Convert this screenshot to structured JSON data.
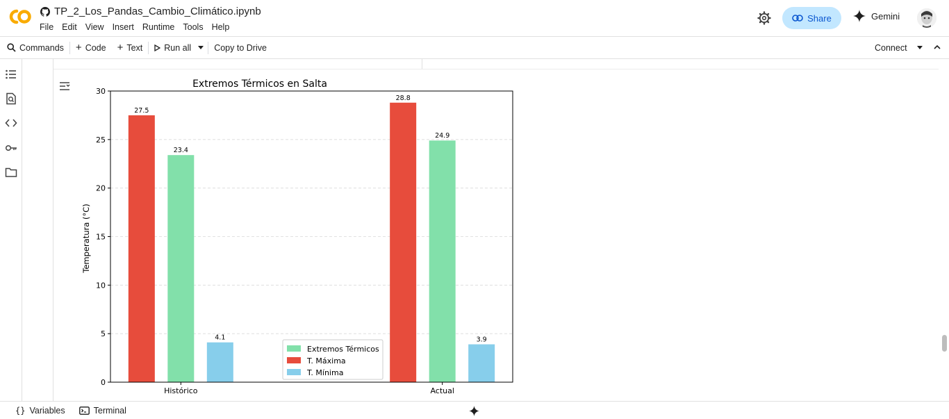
{
  "app": {
    "notebook_title": "TP_2_Los_Pandas_Cambio_Climático.ipynb",
    "menu": [
      "File",
      "Edit",
      "View",
      "Insert",
      "Runtime",
      "Tools",
      "Help"
    ],
    "share_label": "Share",
    "gemini_label": "Gemini"
  },
  "toolbar": {
    "commands": "Commands",
    "code": "Code",
    "text": "Text",
    "run_all": "Run all",
    "copy_to_drive": "Copy to Drive",
    "connect": "Connect"
  },
  "statusbar": {
    "variables": "Variables",
    "terminal": "Terminal"
  },
  "colors": {
    "maxima": "#e74c3c",
    "extremos": "#82e0aa",
    "minima": "#87ceeb",
    "share_bg": "#c2e7ff",
    "accent": "#0b57d0",
    "logo_orange": "#f9ab00"
  },
  "chart_data": {
    "type": "bar",
    "title": "Extremos Térmicos en Salta",
    "xlabel": "",
    "ylabel": "Temperatura (°C)",
    "categories": [
      "Histórico",
      "Actual"
    ],
    "ylim": [
      0,
      30
    ],
    "yticks": [
      0,
      5,
      10,
      15,
      20,
      25,
      30
    ],
    "grid": "y-dashed",
    "legend_position": "lower center",
    "legend_order": [
      "Extremos Térmicos",
      "T. Máxima",
      "T. Mínima"
    ],
    "series": [
      {
        "name": "T. Máxima",
        "values": [
          27.5,
          28.8
        ],
        "labels": [
          "27.5",
          "28.8"
        ],
        "color": "#e74c3c"
      },
      {
        "name": "Extremos Térmicos",
        "values": [
          23.4,
          24.9
        ],
        "labels": [
          "23.4",
          "24.9"
        ],
        "color": "#82e0aa"
      },
      {
        "name": "T. Mínima",
        "values": [
          4.1,
          3.9
        ],
        "labels": [
          "4.1",
          "3.9"
        ],
        "color": "#87ceeb"
      }
    ]
  }
}
